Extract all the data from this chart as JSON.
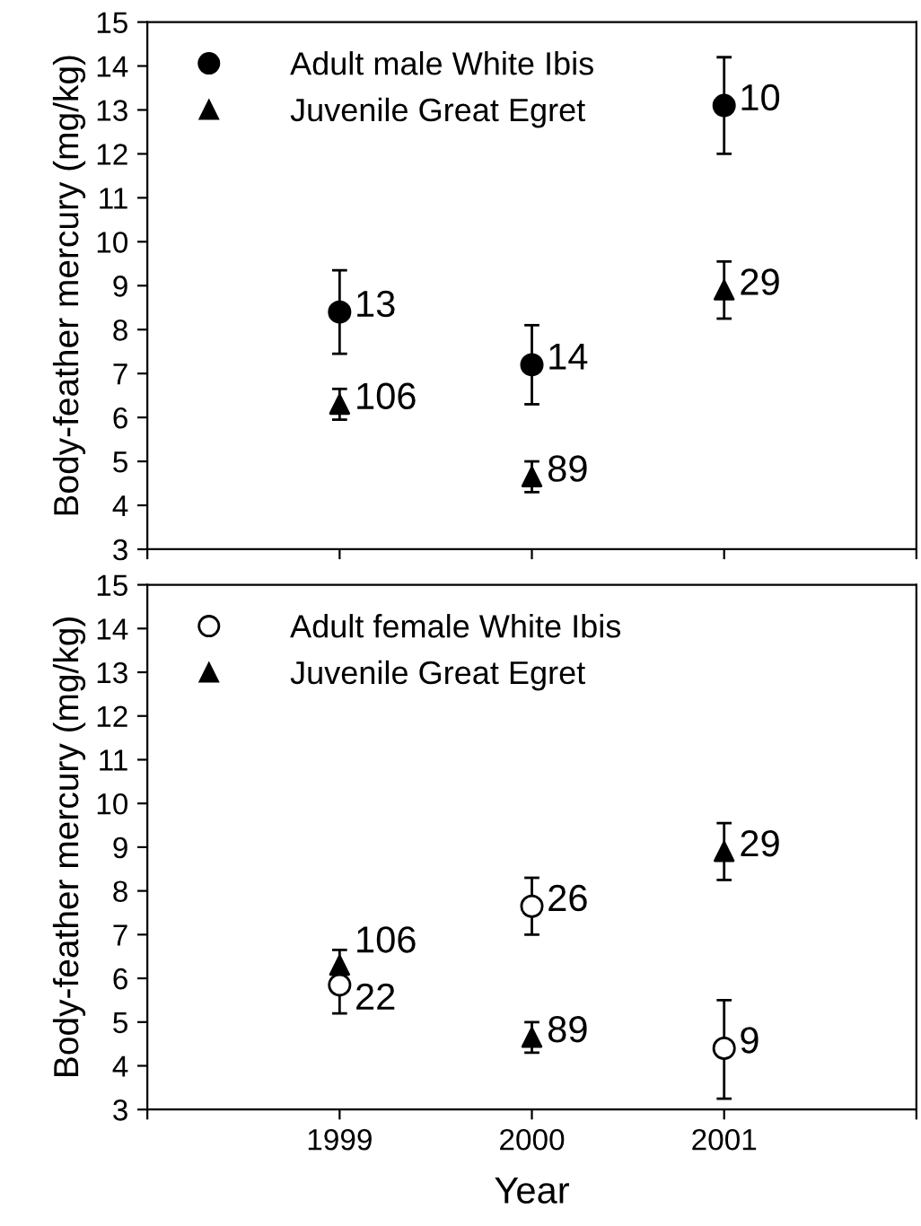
{
  "chart_data": [
    {
      "type": "scatter",
      "ylabel": "Body-feather mercury (mg/kg)",
      "x": [
        1999,
        2000,
        2001
      ],
      "xlim": [
        1998,
        2002
      ],
      "xticks": [
        {
          "value": 1998,
          "label": null
        },
        {
          "value": 1999,
          "label": null
        },
        {
          "value": 2000,
          "label": null
        },
        {
          "value": 2001,
          "label": null
        },
        {
          "value": 2002,
          "label": null
        }
      ],
      "ylim": [
        3,
        15
      ],
      "yticks": [
        3,
        4,
        5,
        6,
        7,
        8,
        9,
        10,
        11,
        12,
        13,
        14,
        15
      ],
      "tick_labels": "y",
      "legend": "top left",
      "grid": false,
      "series": [
        {
          "name": "Adult male White Ibis",
          "color": "#000000",
          "marker": "circle",
          "values": [
            8.4,
            7.2,
            13.1
          ],
          "errors": [
            [
              7.45,
              9.35
            ],
            [
              6.3,
              8.1
            ],
            [
              12.0,
              14.2
            ]
          ]
        },
        {
          "name": "Juvenile Great Egret",
          "color": "#000000",
          "marker": "triangle",
          "values": [
            6.3,
            4.65,
            8.9
          ],
          "errors": [
            [
              5.95,
              6.65
            ],
            [
              4.3,
              5.0
            ],
            [
              8.25,
              9.55
            ]
          ]
        }
      ],
      "annotations": [
        {
          "text": "13",
          "x": 1999,
          "y": 8.4
        },
        {
          "text": "14",
          "x": 2000,
          "y": 7.2
        },
        {
          "text": "10",
          "x": 2001,
          "y": 13.1
        },
        {
          "text": "106",
          "x": 1999,
          "y": 6.3
        },
        {
          "text": "89",
          "x": 2000,
          "y": 4.65
        },
        {
          "text": "29",
          "x": 2001,
          "y": 8.9
        }
      ]
    },
    {
      "type": "scatter",
      "xlabel": "Year",
      "ylabel": "Body-feather mercury (mg/kg)",
      "x": [
        1999,
        2000,
        2001
      ],
      "xlim": [
        1998,
        2002
      ],
      "xticks": [
        {
          "value": 1998,
          "label": null
        },
        1999,
        2000,
        2001,
        {
          "value": 2002,
          "label": null
        }
      ],
      "ylim": [
        3,
        15
      ],
      "yticks": [
        3,
        4,
        5,
        6,
        7,
        8,
        9,
        10,
        11,
        12,
        13,
        14,
        15
      ],
      "legend": "top left",
      "grid": false,
      "series": [
        {
          "name": "Adult female White Ibis",
          "color": "#ffffff",
          "marker": "circle",
          "values": [
            5.85,
            7.65,
            4.4
          ],
          "errors": [
            [
              5.2,
              6.1
            ],
            [
              7.0,
              8.3
            ],
            [
              3.25,
              5.5
            ]
          ]
        },
        {
          "name": "Juvenile Great Egret",
          "color": "#000000",
          "marker": "triangle",
          "values": [
            6.3,
            4.65,
            8.9
          ],
          "errors": [
            [
              5.95,
              6.65
            ],
            [
              4.3,
              5.0
            ],
            [
              8.25,
              9.55
            ]
          ]
        }
      ],
      "annotations": [
        {
          "text": "22",
          "x": 1999,
          "y": 5.85
        },
        {
          "text": "26",
          "x": 2000,
          "y": 7.65
        },
        {
          "text": "9",
          "x": 2001,
          "y": 4.4
        },
        {
          "text": "106",
          "x": 1999,
          "y": 6.3
        },
        {
          "text": "89",
          "x": 2000,
          "y": 4.65
        },
        {
          "text": "29",
          "x": 2001,
          "y": 8.9
        }
      ]
    }
  ]
}
